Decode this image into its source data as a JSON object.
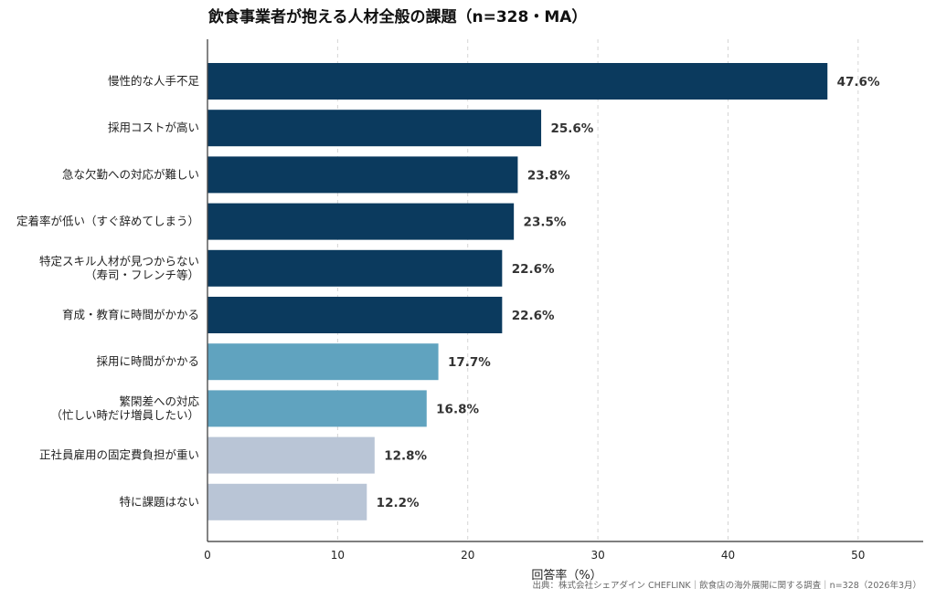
{
  "chart_data": {
    "type": "bar",
    "orientation": "horizontal",
    "title": "飲食事業者が抱える人材全般の課題（n=328・MA）",
    "xlabel": "回答率（%）",
    "ylabel": "",
    "xlim": [
      0,
      55
    ],
    "xticks": [
      "0",
      "10",
      "20",
      "30",
      "40",
      "50"
    ],
    "grid": "vertical dashed",
    "categories": [
      [
        "慢性的な人手不足"
      ],
      [
        "採用コストが高い"
      ],
      [
        "急な欠勤への対応が難しい"
      ],
      [
        "定着率が低い（すぐ辞めてしまう）"
      ],
      [
        "特定スキル人材が見つからない",
        "（寿司・フレンチ等）"
      ],
      [
        "育成・教育に時間がかかる"
      ],
      [
        "採用に時間がかかる"
      ],
      [
        "繁閑差への対応",
        "（忙しい時だけ増員したい）"
      ],
      [
        "正社員雇用の固定費負担が重い"
      ],
      [
        "特に課題はない"
      ]
    ],
    "values": [
      47.6,
      25.6,
      23.8,
      23.5,
      22.6,
      22.6,
      17.7,
      16.8,
      12.8,
      12.2
    ],
    "value_labels": [
      "47.6%",
      "25.6%",
      "23.8%",
      "23.5%",
      "22.6%",
      "22.6%",
      "17.7%",
      "16.8%",
      "12.8%",
      "12.2%"
    ],
    "colors": [
      "#0b3a5e",
      "#0b3a5e",
      "#0b3a5e",
      "#0b3a5e",
      "#0b3a5e",
      "#0b3a5e",
      "#60a3bf",
      "#60a3bf",
      "#b9c5d6",
      "#b9c5d6"
    ]
  },
  "source": "出典：株式会社シェアダイン CHEFLINK｜飲食店の海外展開に関する調査｜n=328（2026年3月）"
}
